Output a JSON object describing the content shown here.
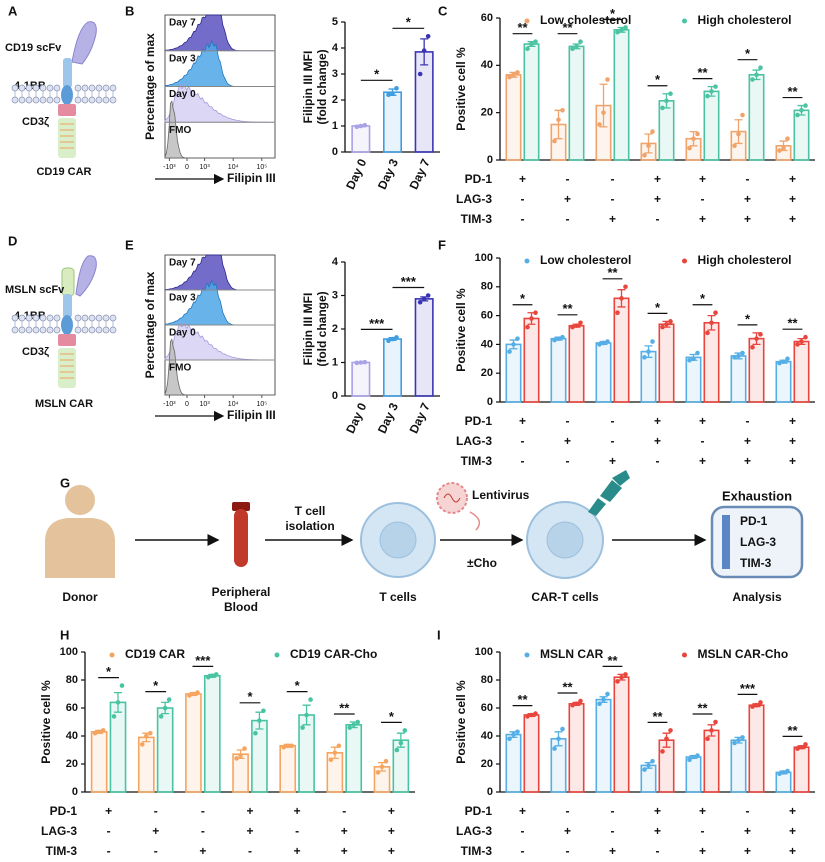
{
  "panel_labels": [
    "A",
    "B",
    "C",
    "D",
    "E",
    "F",
    "G",
    "H",
    "I"
  ],
  "car_diagrams": [
    {
      "scfv": "CD19 scFv",
      "costim": "4-1BB",
      "cd3": "CD3ζ",
      "name": "CD19 CAR"
    },
    {
      "scfv": "MSLN scFv",
      "costim": "4-1BB",
      "cd3": "CD3ζ",
      "name": "MSLN CAR"
    }
  ],
  "histograms": [
    {
      "y_label": "Percentage of max",
      "x_label": "Filipin III",
      "tracks": [
        "Day 7",
        "Day 3",
        "Day 0",
        "FMO"
      ],
      "x_tick_labels": [
        "-10³",
        "0",
        "10³",
        "10⁴",
        "10⁵"
      ]
    },
    {
      "y_label": "Percentage of max",
      "x_label": "Filipin III",
      "tracks": [
        "Day 7",
        "Day 3",
        "Day 0",
        "FMO"
      ],
      "x_tick_labels": [
        "-10³",
        "0",
        "10³",
        "10⁴",
        "10⁵"
      ]
    }
  ],
  "chart_data": [
    {
      "type": "bar",
      "y_label": [
        "Filipin III MFI",
        "(fold change)"
      ],
      "categories": [
        "Day 0",
        "Day 3",
        "Day 7"
      ],
      "values": [
        1.0,
        2.3,
        3.85
      ],
      "errors": [
        0.03,
        0.12,
        0.5
      ],
      "points": [
        [
          0.97,
          1.0,
          1.03
        ],
        [
          2.2,
          2.25,
          2.45
        ],
        [
          3.0,
          3.9,
          4.45
        ]
      ],
      "colors": [
        "#a9a2e6",
        "#3f9de0",
        "#3b35b5"
      ],
      "ylim": [
        0,
        5
      ],
      "yticks": [
        0,
        1,
        2,
        3,
        4,
        5
      ],
      "significance": [
        "*",
        "*"
      ]
    },
    {
      "type": "grouped_bar",
      "y_label": "Positive cell %",
      "ylim": [
        0,
        60
      ],
      "yticks": [
        0,
        20,
        40,
        60
      ],
      "series": [
        {
          "name": "Low cholesterol",
          "color": "#f0a36b",
          "values": [
            36,
            15,
            23,
            7,
            9,
            12,
            6
          ],
          "errors": [
            1,
            6,
            9,
            4,
            3,
            5,
            2
          ],
          "points": [
            [
              35,
              36,
              37
            ],
            [
              8,
              17,
              21
            ],
            [
              15,
              20,
              34
            ],
            [
              2,
              6,
              12
            ],
            [
              5,
              9,
              11
            ],
            [
              6,
              11,
              19
            ],
            [
              4,
              5,
              9
            ]
          ]
        },
        {
          "name": "High cholesterol",
          "color": "#4cc3a3",
          "values": [
            49,
            48,
            55,
            25,
            29,
            36,
            21
          ],
          "errors": [
            1,
            1,
            1,
            3,
            2,
            2,
            2
          ],
          "points": [
            [
              47,
              49,
              50
            ],
            [
              47,
              48,
              50
            ],
            [
              54,
              55,
              56
            ],
            [
              22,
              25,
              28
            ],
            [
              27,
              29,
              31
            ],
            [
              34,
              36,
              39
            ],
            [
              19,
              21,
              23
            ]
          ]
        }
      ],
      "significance": [
        "**",
        "**",
        "*",
        "*",
        "**",
        "*",
        "**"
      ],
      "rows": [
        {
          "label": "PD-1",
          "signs": [
            "+",
            "-",
            "-",
            "+",
            "+",
            "-",
            "+"
          ]
        },
        {
          "label": "LAG-3",
          "signs": [
            "-",
            "+",
            "-",
            "+",
            "-",
            "+",
            "+"
          ]
        },
        {
          "label": "TIM-3",
          "signs": [
            "-",
            "-",
            "+",
            "-",
            "+",
            "+",
            "+"
          ]
        }
      ]
    },
    {
      "type": "bar",
      "y_label": [
        "Filipin III MFI",
        "(fold change)"
      ],
      "categories": [
        "Day 0",
        "Day 3",
        "Day 7"
      ],
      "values": [
        1.0,
        1.7,
        2.9
      ],
      "errors": [
        0.01,
        0.04,
        0.06
      ],
      "points": [
        [
          0.99,
          1.0,
          1.01
        ],
        [
          1.65,
          1.7,
          1.75
        ],
        [
          2.8,
          2.9,
          3.0
        ]
      ],
      "colors": [
        "#a9a2e6",
        "#3f9de0",
        "#3b35b5"
      ],
      "ylim": [
        0,
        4
      ],
      "yticks": [
        0,
        1,
        2,
        3,
        4
      ],
      "significance": [
        "***",
        "***"
      ]
    },
    {
      "type": "grouped_bar",
      "y_label": "Positive cell %",
      "ylim": [
        0,
        100
      ],
      "yticks": [
        0,
        20,
        40,
        60,
        80,
        100
      ],
      "series": [
        {
          "name": "Low cholesterol",
          "color": "#55aee6",
          "values": [
            40,
            44,
            41,
            35,
            31,
            32,
            28
          ],
          "errors": [
            3,
            1,
            1,
            4,
            2,
            2,
            1
          ],
          "points": [
            [
              35,
              40,
              44
            ],
            [
              43,
              44,
              45
            ],
            [
              40,
              41,
              42
            ],
            [
              31,
              35,
              42
            ],
            [
              29,
              30,
              34
            ],
            [
              31,
              32,
              34
            ],
            [
              27,
              28,
              30
            ]
          ]
        },
        {
          "name": "High cholesterol",
          "color": "#e8453c",
          "values": [
            58,
            53,
            72,
            54,
            55,
            44,
            42
          ],
          "errors": [
            4,
            1,
            6,
            2,
            5,
            4,
            2
          ],
          "points": [
            [
              52,
              58,
              62
            ],
            [
              52,
              53,
              55
            ],
            [
              62,
              72,
              80
            ],
            [
              52,
              54,
              56
            ],
            [
              48,
              55,
              62
            ],
            [
              38,
              44,
              47
            ],
            [
              40,
              42,
              45
            ]
          ]
        }
      ],
      "significance": [
        "*",
        "**",
        "**",
        "*",
        "*",
        "*",
        "**"
      ],
      "rows": [
        {
          "label": "PD-1",
          "signs": [
            "+",
            "-",
            "-",
            "+",
            "+",
            "-",
            "+"
          ]
        },
        {
          "label": "LAG-3",
          "signs": [
            "-",
            "+",
            "-",
            "+",
            "-",
            "+",
            "+"
          ]
        },
        {
          "label": "TIM-3",
          "signs": [
            "-",
            "-",
            "+",
            "-",
            "+",
            "+",
            "+"
          ]
        }
      ]
    },
    {
      "type": "grouped_bar",
      "y_label": "Positive cell %",
      "ylim": [
        0,
        100
      ],
      "yticks": [
        0,
        20,
        40,
        60,
        80,
        100
      ],
      "series": [
        {
          "name": "CD19 CAR",
          "color": "#f5a55f",
          "values": [
            43,
            39,
            70,
            27,
            33,
            28,
            18
          ],
          "errors": [
            1,
            3,
            1,
            3,
            1,
            4,
            3
          ],
          "points": [
            [
              42,
              43,
              44
            ],
            [
              34,
              40,
              42
            ],
            [
              69,
              70,
              71
            ],
            [
              24,
              26,
              31
            ],
            [
              32,
              33,
              33
            ],
            [
              23,
              28,
              33
            ],
            [
              14,
              18,
              22
            ]
          ]
        },
        {
          "name": "CD19 CAR-Cho",
          "color": "#48c4a2",
          "values": [
            64,
            60,
            83,
            51,
            55,
            48,
            37
          ],
          "errors": [
            7,
            4,
            1,
            6,
            7,
            2,
            5
          ],
          "points": [
            [
              54,
              64,
              76
            ],
            [
              54,
              60,
              66
            ],
            [
              82,
              83,
              84
            ],
            [
              42,
              51,
              58
            ],
            [
              46,
              55,
              66
            ],
            [
              46,
              48,
              50
            ],
            [
              30,
              35,
              44
            ]
          ]
        }
      ],
      "significance": [
        "*",
        "*",
        "***",
        "*",
        "*",
        "**",
        "*"
      ],
      "rows": [
        {
          "label": "PD-1",
          "signs": [
            "+",
            "-",
            "-",
            "+",
            "+",
            "-",
            "+"
          ]
        },
        {
          "label": "LAG-3",
          "signs": [
            "-",
            "+",
            "-",
            "+",
            "-",
            "+",
            "+"
          ]
        },
        {
          "label": "TIM-3",
          "signs": [
            "-",
            "-",
            "+",
            "-",
            "+",
            "+",
            "+"
          ]
        }
      ]
    },
    {
      "type": "grouped_bar",
      "y_label": "Positive cell %",
      "ylim": [
        0,
        100
      ],
      "yticks": [
        0,
        20,
        40,
        60,
        80,
        100
      ],
      "series": [
        {
          "name": "MSLN CAR",
          "color": "#55aee6",
          "values": [
            41,
            38,
            66,
            19,
            25,
            37,
            14
          ],
          "errors": [
            2,
            5,
            2,
            2,
            1,
            2,
            1
          ],
          "points": [
            [
              38,
              41,
              43
            ],
            [
              31,
              38,
              45
            ],
            [
              63,
              66,
              70
            ],
            [
              16,
              19,
              22
            ],
            [
              23,
              25,
              26
            ],
            [
              35,
              37,
              39
            ],
            [
              13,
              14,
              15
            ]
          ]
        },
        {
          "name": "MSLN CAR-Cho",
          "color": "#e8453c",
          "values": [
            55,
            63,
            82,
            37,
            44,
            62,
            32
          ],
          "errors": [
            1,
            1,
            2,
            5,
            4,
            1,
            1
          ],
          "points": [
            [
              54,
              55,
              56
            ],
            [
              62,
              63,
              65
            ],
            [
              79,
              82,
              84
            ],
            [
              29,
              38,
              44
            ],
            [
              38,
              44,
              50
            ],
            [
              61,
              62,
              64
            ],
            [
              31,
              32,
              34
            ]
          ]
        }
      ],
      "significance": [
        "**",
        "**",
        "**",
        "**",
        "**",
        "***",
        "**"
      ],
      "rows": [
        {
          "label": "PD-1",
          "signs": [
            "+",
            "-",
            "-",
            "+",
            "+",
            "-",
            "+"
          ]
        },
        {
          "label": "LAG-3",
          "signs": [
            "-",
            "+",
            "-",
            "+",
            "-",
            "+",
            "+"
          ]
        },
        {
          "label": "TIM-3",
          "signs": [
            "-",
            "-",
            "+",
            "-",
            "+",
            "+",
            "+"
          ]
        }
      ]
    }
  ],
  "workflow": {
    "donor": "Donor",
    "blood": [
      "Peripheral",
      "Blood"
    ],
    "isolation": [
      "T cell",
      "isolation"
    ],
    "t_cells": "T cells",
    "virus": "Lentivirus",
    "treatment": "±Cho",
    "car_t": "CAR-T cells",
    "readout": "Exhaustion",
    "markers": [
      "PD-1",
      "LAG-3",
      "TIM-3"
    ],
    "analysis": "Analysis"
  }
}
